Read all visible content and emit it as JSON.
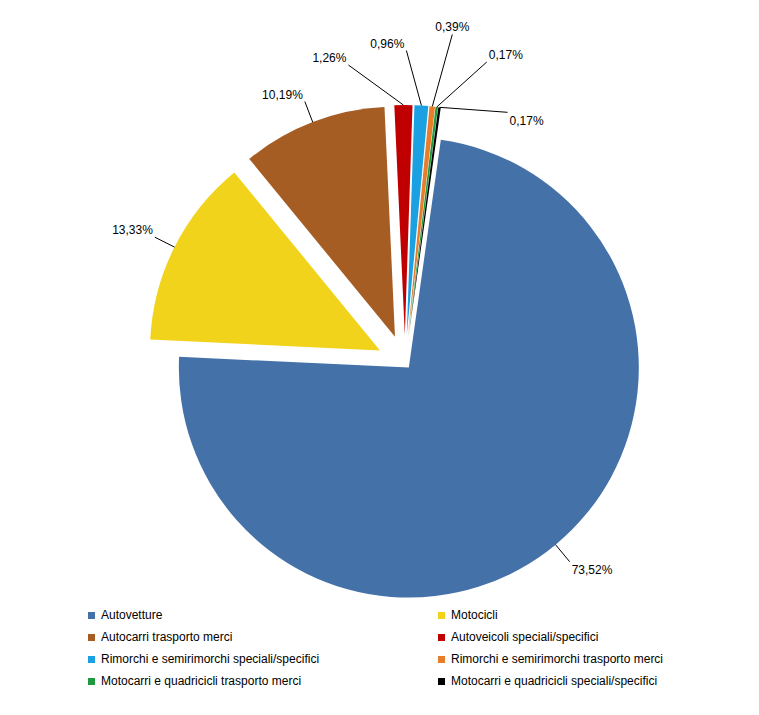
{
  "chart_data": {
    "type": "pie",
    "categories": [
      "Autovetture",
      "Motocicli",
      "Autocarri trasporto merci",
      "Autoveicoli speciali/specifici",
      "Rimorchi e semirimorchi speciali/specifici",
      "Rimorchi e semirimorchi trasporto merci",
      "Motocarri e quadricicli trasporto merci",
      "Motocarri e quadricicli speciali/specifici"
    ],
    "values": [
      73.52,
      13.33,
      10.19,
      1.26,
      0.96,
      0.39,
      0.17,
      0.17
    ],
    "value_labels": [
      "73,52%",
      "13,33%",
      "10,19%",
      "1,26%",
      "0,96%",
      "0,39%",
      "0,17%",
      "0,17%"
    ],
    "colors": [
      "#4472a8",
      "#f2d31c",
      "#a65d24",
      "#c00000",
      "#1ba1e2",
      "#e87d2b",
      "#1e9a3c",
      "#000000"
    ],
    "data_labels": true,
    "legend": "bottom"
  }
}
